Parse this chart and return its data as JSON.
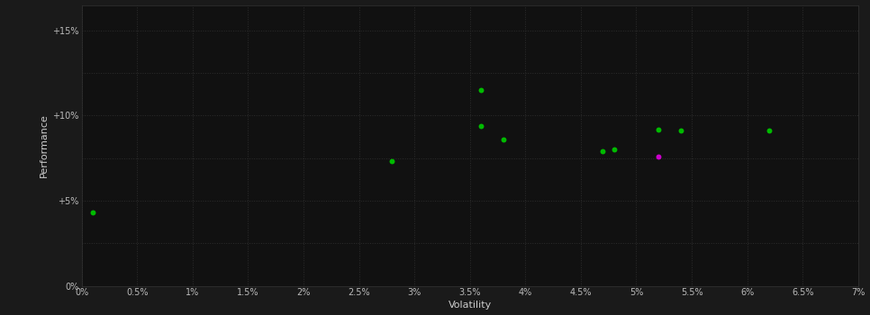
{
  "background_color": "#1a1a1a",
  "plot_bg_color": "#111111",
  "grid_color": "#2d2d2d",
  "axis_label_color": "#cccccc",
  "tick_label_color": "#bbbbbb",
  "xlabel": "Volatility",
  "ylabel": "Performance",
  "xlim": [
    0,
    0.07
  ],
  "ylim": [
    0,
    0.165
  ],
  "x_ticks": [
    0,
    0.005,
    0.01,
    0.015,
    0.02,
    0.025,
    0.03,
    0.035,
    0.04,
    0.045,
    0.05,
    0.055,
    0.06,
    0.065,
    0.07
  ],
  "y_ticks": [
    0,
    0.025,
    0.05,
    0.075,
    0.1,
    0.125,
    0.15
  ],
  "y_labels": [
    "0%",
    "",
    "+5%",
    "",
    "+10%",
    "",
    "+15%"
  ],
  "green_points": [
    [
      0.001,
      0.043
    ],
    [
      0.028,
      0.073
    ],
    [
      0.036,
      0.115
    ],
    [
      0.036,
      0.094
    ],
    [
      0.038,
      0.086
    ],
    [
      0.047,
      0.079
    ],
    [
      0.048,
      0.08
    ],
    [
      0.052,
      0.092
    ],
    [
      0.054,
      0.091
    ],
    [
      0.062,
      0.091
    ]
  ],
  "magenta_points": [
    [
      0.052,
      0.076
    ]
  ],
  "point_size": 18,
  "green_color": "#00bb00",
  "magenta_color": "#cc00cc"
}
